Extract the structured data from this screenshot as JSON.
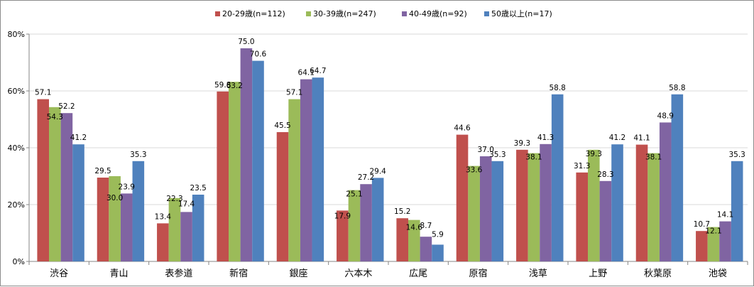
{
  "chart_data": {
    "type": "bar",
    "title": "",
    "xlabel": "",
    "ylabel": "",
    "ylim": [
      0,
      80
    ],
    "y_unit": "%",
    "y_ticks": [
      "0%",
      "20%",
      "40%",
      "60%",
      "80%"
    ],
    "grid": true,
    "legend_position": "top",
    "categories": [
      "渋谷",
      "青山",
      "表参道",
      "新宿",
      "銀座",
      "六本木",
      "広尾",
      "原宿",
      "浅草",
      "上野",
      "秋葉原",
      "池袋"
    ],
    "series": [
      {
        "name": "20-29歳(n=112)",
        "color": "#c0504d",
        "values": [
          57.1,
          29.5,
          13.4,
          59.8,
          45.5,
          17.9,
          15.2,
          44.6,
          39.3,
          31.3,
          41.1,
          10.7
        ]
      },
      {
        "name": "30-39歳(n=247)",
        "color": "#9bbb59",
        "values": [
          54.3,
          30.0,
          22.3,
          63.2,
          57.1,
          25.1,
          14.6,
          33.6,
          38.1,
          39.3,
          38.1,
          12.1
        ]
      },
      {
        "name": "40-49歳(n=92)",
        "color": "#8064a2",
        "values": [
          52.2,
          23.9,
          17.4,
          75.0,
          64.1,
          27.2,
          8.7,
          37.0,
          41.3,
          28.3,
          48.9,
          14.1
        ]
      },
      {
        "name": "50歳以上(n=17)",
        "color": "#4f81bd",
        "values": [
          41.2,
          35.3,
          23.5,
          70.6,
          64.7,
          29.4,
          5.9,
          35.3,
          58.8,
          41.2,
          58.8,
          35.3
        ]
      }
    ]
  }
}
